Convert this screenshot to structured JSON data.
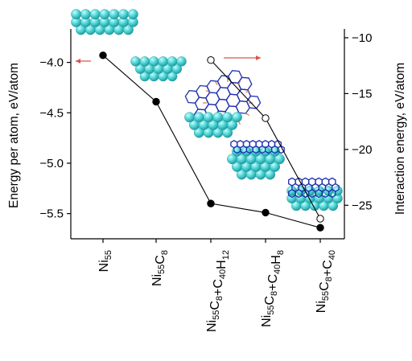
{
  "chart_data": {
    "type": "line",
    "categories": [
      {
        "base": [
          [
            "Ni",
            false
          ],
          [
            "55",
            true
          ]
        ],
        "text": "Ni55"
      },
      {
        "base": [
          [
            "Ni",
            false
          ],
          [
            "55",
            true
          ],
          [
            "C",
            false
          ],
          [
            "8",
            true
          ]
        ],
        "text": "Ni55C8"
      },
      {
        "base": [
          [
            "Ni",
            false
          ],
          [
            "55",
            true
          ],
          [
            "C",
            false
          ],
          [
            "8",
            true
          ],
          [
            "+C",
            false
          ],
          [
            "40",
            true
          ],
          [
            "H",
            false
          ],
          [
            "12",
            true
          ]
        ],
        "text": "Ni55C8+C40H12"
      },
      {
        "base": [
          [
            "Ni",
            false
          ],
          [
            "55",
            true
          ],
          [
            "C",
            false
          ],
          [
            "8",
            true
          ],
          [
            "+C",
            false
          ],
          [
            "40",
            true
          ],
          [
            "H",
            false
          ],
          [
            "8",
            true
          ]
        ],
        "text": "Ni55C8+C40H8"
      },
      {
        "base": [
          [
            "Ni",
            false
          ],
          [
            "55",
            true
          ],
          [
            "C",
            false
          ],
          [
            "8",
            true
          ],
          [
            "+C",
            false
          ],
          [
            "40",
            true
          ]
        ],
        "text": "Ni55C8+C40"
      }
    ],
    "ylabel_left": "Energy per atom, eV/atom",
    "ylabel_right": "Interaction energy, eV/atom",
    "ylim_left": [
      -5.75,
      -3.7
    ],
    "ylim_right": [
      -28.0,
      -9.5
    ],
    "yticks_left": [
      -4.0,
      -4.5,
      -5.0,
      -5.5
    ],
    "yticks_right": [
      -10,
      -15,
      -20,
      -25
    ],
    "series": [
      {
        "axis": "left",
        "marker": "filled",
        "color": "#000000",
        "points": [
          [
            0,
            -3.93
          ],
          [
            1,
            -4.39
          ],
          [
            2,
            -5.4
          ],
          [
            3,
            -5.49
          ],
          [
            4,
            -5.64
          ]
        ]
      },
      {
        "axis": "right",
        "marker": "open",
        "color": "#000000",
        "points": [
          [
            2,
            -12.0
          ],
          [
            3,
            -17.2
          ],
          [
            4,
            -26.2
          ]
        ]
      }
    ],
    "grid": false,
    "arrow_color": "#d9534f"
  }
}
